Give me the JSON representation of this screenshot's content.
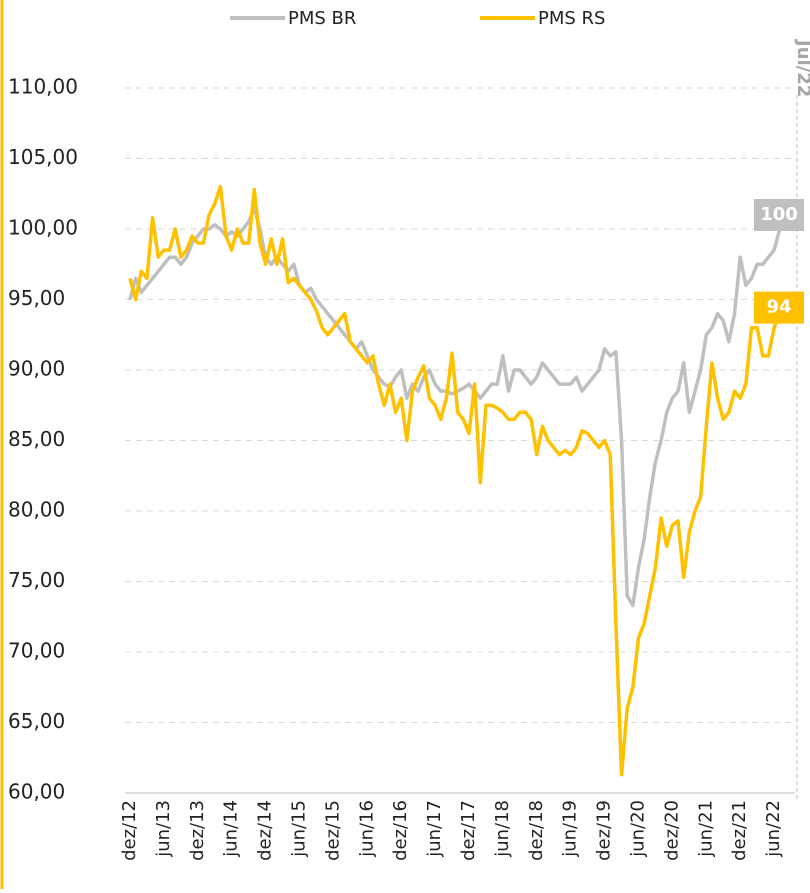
{
  "chart_data": {
    "type": "line",
    "categories": [
      "dez/12",
      null,
      null,
      null,
      null,
      null,
      "jun/13",
      null,
      null,
      null,
      null,
      null,
      "dez/13",
      null,
      null,
      null,
      null,
      null,
      "jun/14",
      null,
      null,
      null,
      null,
      null,
      "dez/14",
      null,
      null,
      null,
      null,
      null,
      "jun/15",
      null,
      null,
      null,
      null,
      null,
      "dez/15",
      null,
      null,
      null,
      null,
      null,
      "jun/16",
      null,
      null,
      null,
      null,
      null,
      "dez/16",
      null,
      null,
      null,
      null,
      null,
      "jun/17",
      null,
      null,
      null,
      null,
      null,
      "dez/17",
      null,
      null,
      null,
      null,
      null,
      "jun/18",
      null,
      null,
      null,
      null,
      null,
      "dez/18",
      null,
      null,
      null,
      null,
      null,
      "jun/19",
      null,
      null,
      null,
      null,
      null,
      "dez/19",
      null,
      null,
      null,
      null,
      null,
      "jun/20",
      null,
      null,
      null,
      null,
      null,
      "dez/20",
      null,
      null,
      null,
      null,
      null,
      "jun/21",
      null,
      null,
      null,
      null,
      null,
      "dez/21",
      null,
      null,
      null,
      null,
      null,
      "jun/22",
      null
    ],
    "series": [
      {
        "name": "PMS BR",
        "color": "#bfbfbf",
        "last_label": "100",
        "values": [
          95,
          96.5,
          95.5,
          96,
          96.5,
          97,
          97.5,
          98,
          98,
          97.5,
          98,
          99,
          99.5,
          100,
          100,
          100.3,
          100,
          99.5,
          99.8,
          99.5,
          100,
          100.5,
          101.5,
          100,
          98,
          97.5,
          98,
          97.5,
          97,
          97.5,
          96,
          95.5,
          95.8,
          95,
          94.5,
          94,
          93.5,
          93,
          92.5,
          92,
          91.5,
          92,
          91,
          90,
          89.5,
          89,
          88.8,
          89.5,
          90,
          88,
          89,
          88.5,
          89.5,
          90,
          89,
          88.5,
          88.5,
          88.3,
          88.5,
          88.7,
          89,
          88.5,
          88,
          88.5,
          89,
          89,
          91,
          88.5,
          90,
          90,
          89.5,
          89,
          89.5,
          90.5,
          90,
          89.5,
          89,
          89,
          89,
          89.5,
          88.5,
          89,
          89.5,
          90,
          91.5,
          91,
          91.3,
          85,
          74,
          73.3,
          76,
          78,
          81,
          83.5,
          85,
          87,
          88,
          88.5,
          90.5,
          87,
          88.5,
          90,
          92.5,
          93,
          94,
          93.5,
          92,
          94,
          98,
          96,
          96.5,
          97.5,
          97.5,
          98,
          98.5,
          100
        ]
      },
      {
        "name": "PMS RS",
        "color": "#ffc000",
        "last_label": "94",
        "values": [
          96.5,
          95,
          97,
          96.5,
          100.8,
          98,
          98.5,
          98.5,
          100,
          98,
          98.5,
          99.5,
          99,
          99,
          101,
          101.8,
          103,
          99.5,
          98.5,
          100,
          99,
          99,
          102.8,
          99,
          97.5,
          99.3,
          97.5,
          99.3,
          96.2,
          96.5,
          96,
          95.5,
          95,
          94.2,
          93,
          92.5,
          93,
          93.5,
          94,
          92,
          91.5,
          91,
          90.5,
          91,
          89,
          87.5,
          89,
          87,
          88,
          85,
          88.5,
          89.5,
          90.3,
          88,
          87.5,
          86.5,
          88,
          91.2,
          87,
          86.5,
          85.5,
          89,
          82,
          87.5,
          87.5,
          87.3,
          87,
          86.5,
          86.5,
          87,
          87,
          86.5,
          84,
          86,
          85,
          84.5,
          84,
          84.3,
          84,
          84.5,
          85.7,
          85.5,
          85,
          84.5,
          85,
          84,
          72,
          61.3,
          66,
          67.5,
          71,
          72,
          74,
          76,
          79.5,
          77.5,
          79,
          79.3,
          75.3,
          78.5,
          80,
          81,
          86,
          90.5,
          88,
          86.5,
          87,
          88.5,
          88,
          89,
          93,
          93,
          91,
          91,
          93,
          94
        ]
      }
    ],
    "annotation": "Jul/22",
    "ylim": [
      60,
      113.3
    ],
    "yticks": [
      {
        "value": 60,
        "label": "60,00"
      },
      {
        "value": 65,
        "label": "65,00"
      },
      {
        "value": 70,
        "label": "70,00"
      },
      {
        "value": 75,
        "label": "75,00"
      },
      {
        "value": 80,
        "label": "80,00"
      },
      {
        "value": 85,
        "label": "85,00"
      },
      {
        "value": 90,
        "label": "90,00"
      },
      {
        "value": 95,
        "label": "95,00"
      },
      {
        "value": 100,
        "label": "100,00"
      },
      {
        "value": 105,
        "label": "105,00"
      },
      {
        "value": 110,
        "label": "110,00"
      }
    ],
    "grid": true
  }
}
